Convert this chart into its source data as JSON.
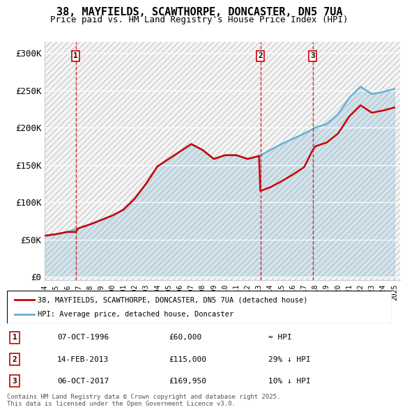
{
  "title1": "38, MAYFIELDS, SCAWTHORPE, DONCASTER, DN5 7UA",
  "title2": "Price paid vs. HM Land Registry's House Price Index (HPI)",
  "ylabel": "",
  "yticks": [
    0,
    50000,
    100000,
    150000,
    200000,
    250000,
    300000
  ],
  "ytick_labels": [
    "£0",
    "£50K",
    "£100K",
    "£150K",
    "£200K",
    "£250K",
    "£300K"
  ],
  "xlim_start": 1994.0,
  "xlim_end": 2025.5,
  "ylim": [
    -5000,
    315000
  ],
  "purchase_dates": [
    1996.77,
    2013.12,
    2017.76
  ],
  "purchase_prices": [
    60000,
    115000,
    169950
  ],
  "purchase_labels": [
    "1",
    "2",
    "3"
  ],
  "red_color": "#cc0000",
  "blue_color": "#6ab0d4",
  "background_hatch_color": "#e8e8e8",
  "legend_line1": "38, MAYFIELDS, SCAWTHORPE, DONCASTER, DN5 7UA (detached house)",
  "legend_line2": "HPI: Average price, detached house, Doncaster",
  "table_data": [
    [
      "1",
      "07-OCT-1996",
      "£60,000",
      "≈ HPI"
    ],
    [
      "2",
      "14-FEB-2013",
      "£115,000",
      "29% ↓ HPI"
    ],
    [
      "3",
      "06-OCT-2017",
      "£169,950",
      "10% ↓ HPI"
    ]
  ],
  "footer": "Contains HM Land Registry data © Crown copyright and database right 2025.\nThis data is licensed under the Open Government Licence v3.0.",
  "hpi_years": [
    1994,
    1995,
    1996,
    1997,
    1998,
    1999,
    2000,
    2001,
    2002,
    2003,
    2004,
    2005,
    2006,
    2007,
    2008,
    2009,
    2010,
    2011,
    2012,
    2013,
    2014,
    2015,
    2016,
    2017,
    2018,
    2019,
    2020,
    2021,
    2022,
    2023,
    2024,
    2025
  ],
  "hpi_values": [
    55000,
    57000,
    60000,
    65000,
    70000,
    76000,
    82000,
    90000,
    105000,
    125000,
    148000,
    158000,
    168000,
    178000,
    170000,
    158000,
    163000,
    163000,
    158000,
    162000,
    170000,
    178000,
    185000,
    192000,
    200000,
    205000,
    218000,
    240000,
    255000,
    245000,
    248000,
    252000
  ],
  "red_line_years": [
    1994,
    1995,
    1996,
    1996.77,
    1997,
    1998,
    1999,
    2000,
    2001,
    2002,
    2003,
    2004,
    2005,
    2006,
    2007,
    2008,
    2009,
    2010,
    2011,
    2012,
    2013,
    2013.12,
    2014,
    2015,
    2016,
    2017,
    2017.76,
    2018,
    2019,
    2020,
    2021,
    2022,
    2023,
    2024,
    2025
  ],
  "red_line_values": [
    55000,
    57000,
    60000,
    60000,
    65000,
    70000,
    76000,
    82000,
    90000,
    105000,
    125000,
    148000,
    158000,
    168000,
    178000,
    170000,
    158000,
    163000,
    163000,
    158000,
    162000,
    115000,
    120000,
    128000,
    137000,
    147000,
    169950,
    175000,
    180000,
    192000,
    215000,
    230000,
    220000,
    223000,
    227000
  ]
}
